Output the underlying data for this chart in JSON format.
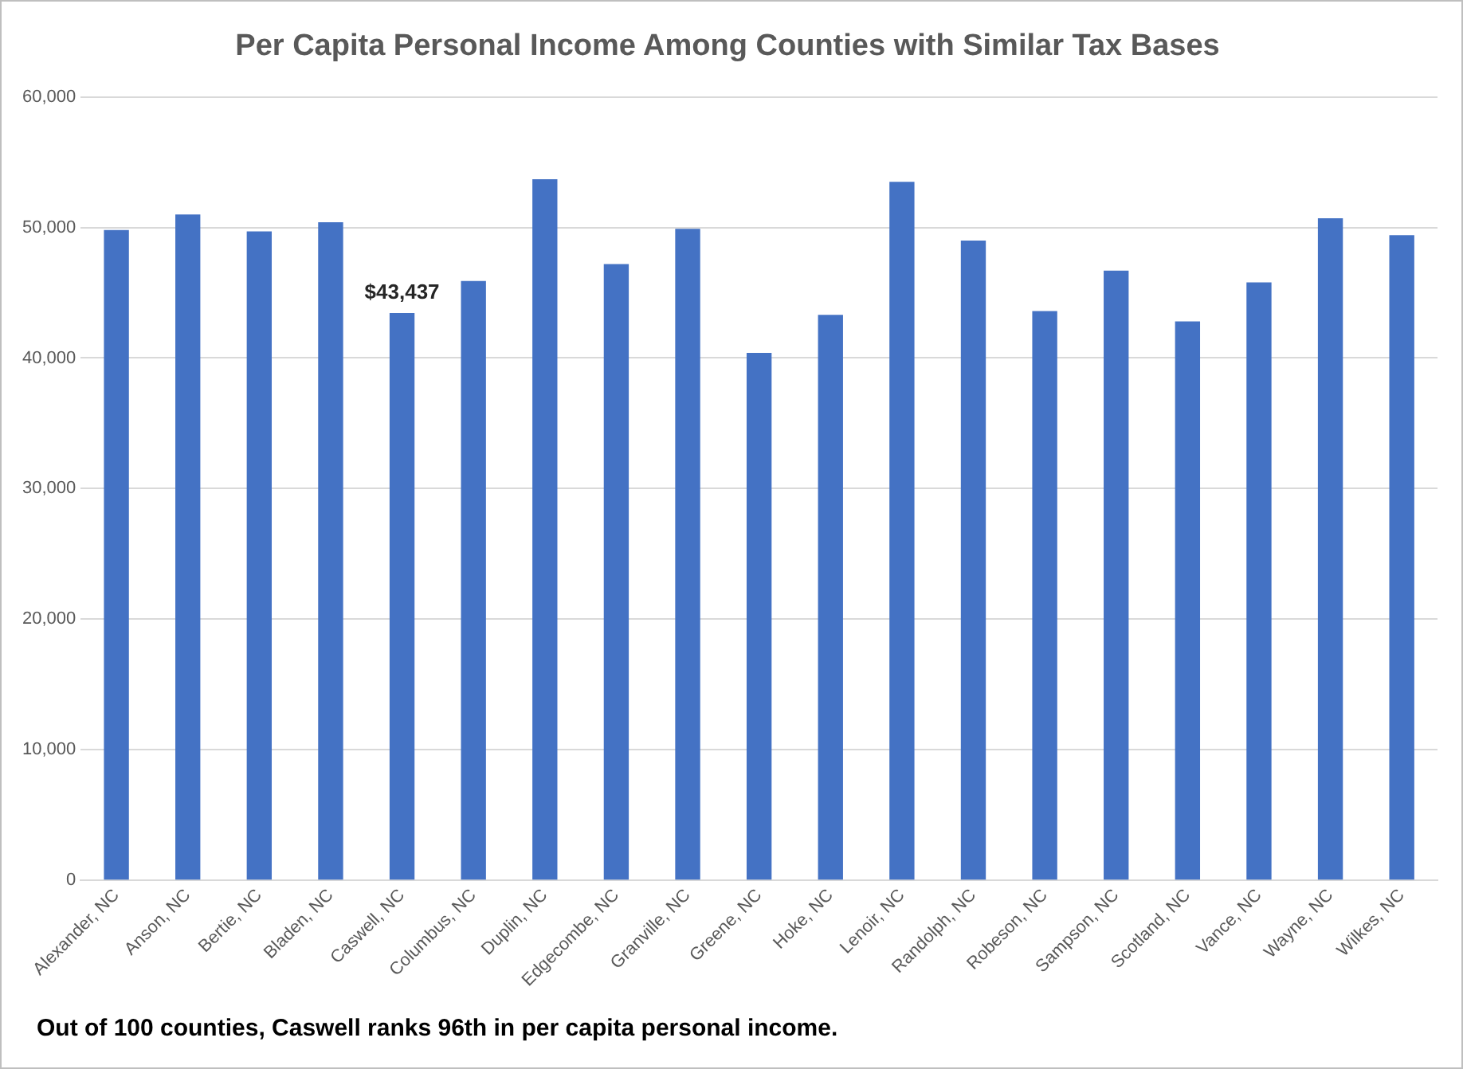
{
  "chart_data": {
    "type": "bar",
    "title": "Per Capita Personal Income Among Counties with Similar Tax Bases",
    "categories": [
      "Alexander, NC",
      "Anson, NC",
      "Bertie, NC",
      "Bladen, NC",
      "Caswell, NC",
      "Columbus, NC",
      "Duplin, NC",
      "Edgecombe, NC",
      "Granville, NC",
      "Greene, NC",
      "Hoke, NC",
      "Lenoir, NC",
      "Randolph, NC",
      "Robeson, NC",
      "Sampson, NC",
      "Scotland, NC",
      "Vance, NC",
      "Wayne, NC",
      "Wilkes, NC"
    ],
    "values": [
      49800,
      51000,
      49700,
      50400,
      43437,
      45900,
      53700,
      47200,
      49900,
      40400,
      43300,
      53500,
      49000,
      43600,
      46700,
      42800,
      45800,
      50700,
      49400
    ],
    "value_labels": [
      null,
      null,
      null,
      null,
      "$43,437",
      null,
      null,
      null,
      null,
      null,
      null,
      null,
      null,
      null,
      null,
      null,
      null,
      null,
      null
    ],
    "color": "#4472c4",
    "ylim": [
      0,
      60000
    ],
    "yticks": [
      0,
      {
        "value": 10000,
        "label": "10,000"
      },
      {
        "value": 20000,
        "label": "20,000"
      },
      {
        "value": 30000,
        "label": "30,000"
      },
      {
        "value": 40000,
        "label": "40,000"
      },
      {
        "value": 50000,
        "label": "50,000"
      },
      {
        "value": 60000,
        "label": "60,000"
      }
    ],
    "grid": "y",
    "legend": false,
    "annotations": [
      "Out of 100 counties, Caswell ranks 96th in per capita personal income."
    ]
  }
}
